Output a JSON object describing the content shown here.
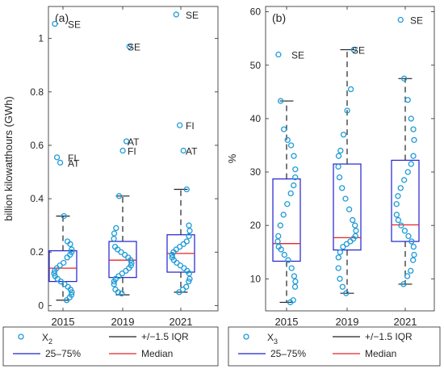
{
  "colors": {
    "points": "#1f9bd7",
    "box": "#2020d0",
    "median": "#e8242a",
    "whisker": "#222222",
    "axis": "#262626",
    "legend_border": "#262626"
  },
  "chart_data": [
    {
      "type": "box",
      "panel_label": "(a)",
      "ylabel": "billion kilowatthours (GWh)",
      "ylim": [
        -0.02,
        1.12
      ],
      "yticks": [
        0,
        0.2,
        0.4,
        0.6,
        0.8,
        1
      ],
      "ytick_labels": [
        "0",
        "0.2",
        "0.4",
        "0.6",
        "0.8",
        "1"
      ],
      "categories": [
        "2015",
        "2019",
        "2021"
      ],
      "boxes": [
        {
          "q1": 0.09,
          "median": 0.14,
          "q3": 0.205,
          "whisker_low": 0.02,
          "whisker_high": 0.335
        },
        {
          "q1": 0.105,
          "median": 0.17,
          "q3": 0.24,
          "whisker_low": 0.04,
          "whisker_high": 0.41
        },
        {
          "q1": 0.125,
          "median": 0.195,
          "q3": 0.265,
          "whisker_low": 0.05,
          "whisker_high": 0.435
        }
      ],
      "points": [
        [
          0.02,
          0.03,
          0.04,
          0.05,
          0.06,
          0.07,
          0.08,
          0.09,
          0.1,
          0.11,
          0.12,
          0.13,
          0.14,
          0.15,
          0.16,
          0.18,
          0.19,
          0.2,
          0.21,
          0.23,
          0.24,
          0.335,
          0.535,
          0.555,
          1.055
        ],
        [
          0.045,
          0.05,
          0.06,
          0.08,
          0.09,
          0.1,
          0.11,
          0.12,
          0.13,
          0.14,
          0.15,
          0.16,
          0.17,
          0.18,
          0.19,
          0.2,
          0.21,
          0.22,
          0.25,
          0.27,
          0.29,
          0.41,
          0.58,
          0.615,
          0.97
        ],
        [
          0.05,
          0.06,
          0.07,
          0.09,
          0.1,
          0.12,
          0.13,
          0.14,
          0.15,
          0.16,
          0.17,
          0.18,
          0.19,
          0.2,
          0.21,
          0.22,
          0.23,
          0.24,
          0.26,
          0.28,
          0.3,
          0.435,
          0.58,
          0.675,
          1.09
        ]
      ],
      "outlier_labels": [
        {
          "group": 0,
          "value": 1.055,
          "text": "SE"
        },
        {
          "group": 0,
          "value": 0.555,
          "text": "FI"
        },
        {
          "group": 0,
          "value": 0.535,
          "text": "AT"
        },
        {
          "group": 1,
          "value": 0.97,
          "text": "SE"
        },
        {
          "group": 1,
          "value": 0.615,
          "text": "AT"
        },
        {
          "group": 1,
          "value": 0.58,
          "text": "FI"
        },
        {
          "group": 2,
          "value": 1.09,
          "text": "SE"
        },
        {
          "group": 2,
          "value": 0.675,
          "text": "FI"
        },
        {
          "group": 2,
          "value": 0.58,
          "text": "AT"
        }
      ],
      "legend": {
        "points_label_main": "X",
        "points_label_sub": "2",
        "whisker_label": "+/−1.5 IQR",
        "box_label": "25–75%",
        "median_label": "Median"
      }
    },
    {
      "type": "box",
      "panel_label": "(b)",
      "ylabel": "%",
      "ylim": [
        4,
        61
      ],
      "yticks": [
        10,
        20,
        30,
        40,
        50,
        60
      ],
      "ytick_labels": [
        "10",
        "20",
        "30",
        "40",
        "50",
        "60"
      ],
      "categories": [
        "2015",
        "2019",
        "2021"
      ],
      "boxes": [
        {
          "q1": 13.3,
          "median": 16.6,
          "q3": 28.7,
          "whisker_low": 5.6,
          "whisker_high": 43.3
        },
        {
          "q1": 15.4,
          "median": 17.7,
          "q3": 31.5,
          "whisker_low": 7.3,
          "whisker_high": 52.9
        },
        {
          "q1": 17.0,
          "median": 20.1,
          "q3": 32.2,
          "whisker_low": 9.0,
          "whisker_high": 47.5
        }
      ],
      "points": [
        [
          5.6,
          6.0,
          8.5,
          9.5,
          10.5,
          12.0,
          13.5,
          14.5,
          15.5,
          16.0,
          17.0,
          18.0,
          20.0,
          22.0,
          24.0,
          26.0,
          27.5,
          29.0,
          30.5,
          33.0,
          35.0,
          36.0,
          38.0,
          43.3,
          52.0
        ],
        [
          7.3,
          8.5,
          10.0,
          12.0,
          14.0,
          15.0,
          16.0,
          16.5,
          17.0,
          17.5,
          18.0,
          19.0,
          20.0,
          21.0,
          23.0,
          25.0,
          27.0,
          29.0,
          31.0,
          33.0,
          34.0,
          37.0,
          41.5,
          45.5,
          52.9
        ],
        [
          9.0,
          10.5,
          11.5,
          13.5,
          14.5,
          16.0,
          17.0,
          18.0,
          19.0,
          20.0,
          21.0,
          22.0,
          24.0,
          25.5,
          27.0,
          28.5,
          30.0,
          31.5,
          33.0,
          36.0,
          38.0,
          40.0,
          43.5,
          47.5,
          58.5
        ]
      ],
      "outlier_labels": [
        {
          "group": 0,
          "value": 52.0,
          "text": "SE"
        },
        {
          "group": 1,
          "value": 52.9,
          "text": "SE"
        },
        {
          "group": 2,
          "value": 58.5,
          "text": "SE"
        }
      ],
      "legend": {
        "points_label_main": "X",
        "points_label_sub": "3",
        "whisker_label": "+/−1.5 IQR",
        "box_label": "25–75%",
        "median_label": "Median"
      }
    }
  ]
}
